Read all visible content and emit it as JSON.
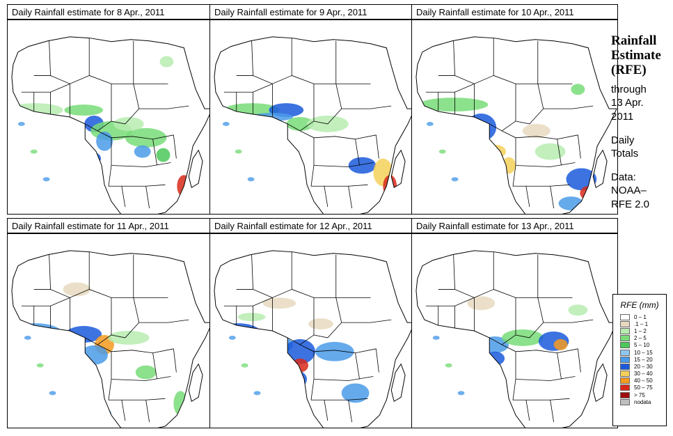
{
  "panels": [
    {
      "title": "Daily Rainfall estimate for  8 Apr., 2011"
    },
    {
      "title": "Daily Rainfall estimate for  9 Apr., 2011"
    },
    {
      "title": "Daily Rainfall estimate for  10 Apr., 2011"
    },
    {
      "title": "Daily Rainfall estimate for  11 Apr., 2011"
    },
    {
      "title": "Daily Rainfall estimate for  12 Apr., 2011"
    },
    {
      "title": "Daily Rainfall estimate for  13 Apr., 2011"
    }
  ],
  "sidebar": {
    "title_line1": "Rainfall",
    "title_line2": "Estimate",
    "title_line3": "(RFE)",
    "through": "through",
    "date_line1": "13 Apr.",
    "date_line2": "2011",
    "type_line1": "Daily",
    "type_line2": "Totals",
    "data_line1": "Data:",
    "data_line2": "NOAA–",
    "data_line3": "RFE 2.0"
  },
  "legend": {
    "title": "RFE (mm)",
    "items": [
      {
        "label": "0 – 1",
        "color": "#ffffff"
      },
      {
        "label": ".1 – 1",
        "color": "#e8d9c0"
      },
      {
        "label": "1 – 2",
        "color": "#b7ecb0"
      },
      {
        "label": "2 – 5",
        "color": "#78dc78"
      },
      {
        "label": "5 – 10",
        "color": "#4cc85a"
      },
      {
        "label": "10 – 15",
        "color": "#8ec6f0"
      },
      {
        "label": "15 – 20",
        "color": "#4a9be8"
      },
      {
        "label": "20 – 30",
        "color": "#1a5adc"
      },
      {
        "label": "30 – 40",
        "color": "#f5d15a"
      },
      {
        "label": "40 – 50",
        "color": "#f59a1e"
      },
      {
        "label": "50 – 75",
        "color": "#d82a1a"
      },
      {
        "label": "> 75",
        "color": "#a00c0c"
      },
      {
        "label": "nodata",
        "color": "#bebebe"
      }
    ]
  }
}
